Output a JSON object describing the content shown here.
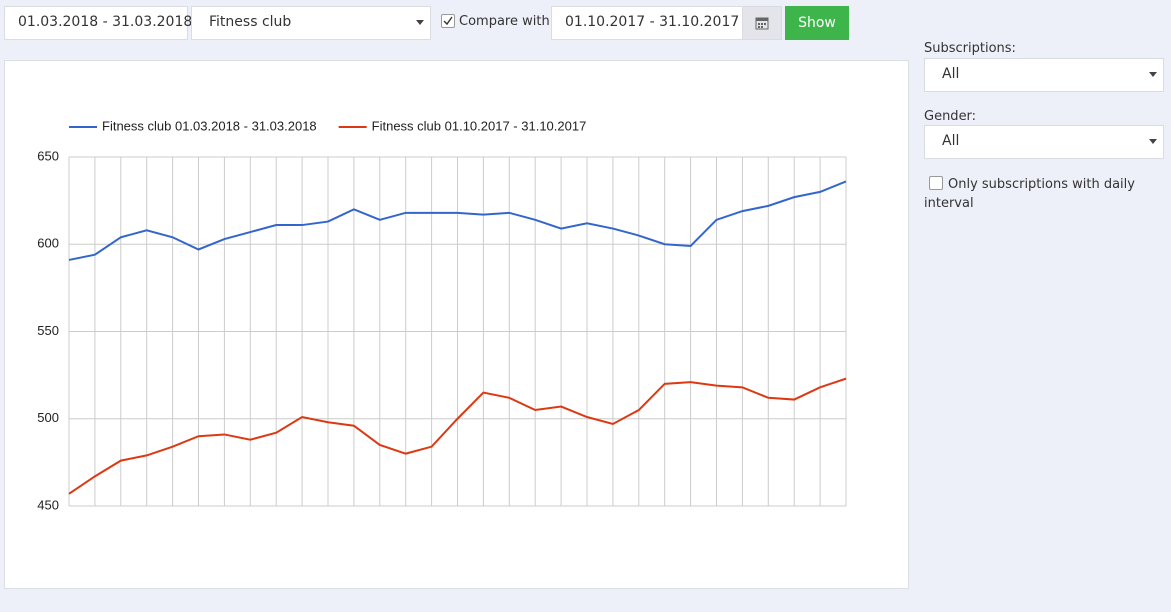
{
  "toolbar": {
    "date_range": "01.03.2018 - 31.03.2018",
    "club": "Fitness club",
    "compare_label": "Compare with:",
    "compare_range": "01.10.2017 - 31.10.2017",
    "button": "Show"
  },
  "sidebar": {
    "subscriptions": {
      "label": "Subscriptions:",
      "value": "All"
    },
    "gender": {
      "label": "Gender:",
      "value": "All"
    },
    "daily_only": "Only subscriptions with daily interval"
  },
  "chart_data": {
    "type": "line",
    "series": [
      {
        "name": "Fitness club 01.03.2018 - 31.03.2018",
        "color": "#3366cc",
        "values": [
          591,
          594,
          604,
          608,
          604,
          597,
          603,
          607,
          611,
          611,
          613,
          620,
          614,
          618,
          618,
          618,
          617,
          618,
          614,
          609,
          612,
          609,
          605,
          600,
          599,
          614,
          619,
          622,
          627,
          630,
          636
        ]
      },
      {
        "name": "Fitness club 01.10.2017 - 31.10.2017",
        "color": "#dc3912",
        "values": [
          457,
          467,
          476,
          479,
          484,
          490,
          491,
          488,
          492,
          501,
          498,
          496,
          485,
          480,
          484,
          500,
          515,
          512,
          505,
          507,
          501,
          497,
          505,
          520,
          521,
          519,
          518,
          512,
          511,
          518,
          523
        ]
      }
    ],
    "ylim": [
      450,
      650
    ],
    "yticks": [
      450,
      500,
      550,
      600,
      650
    ],
    "grid": true,
    "legend": "top"
  }
}
